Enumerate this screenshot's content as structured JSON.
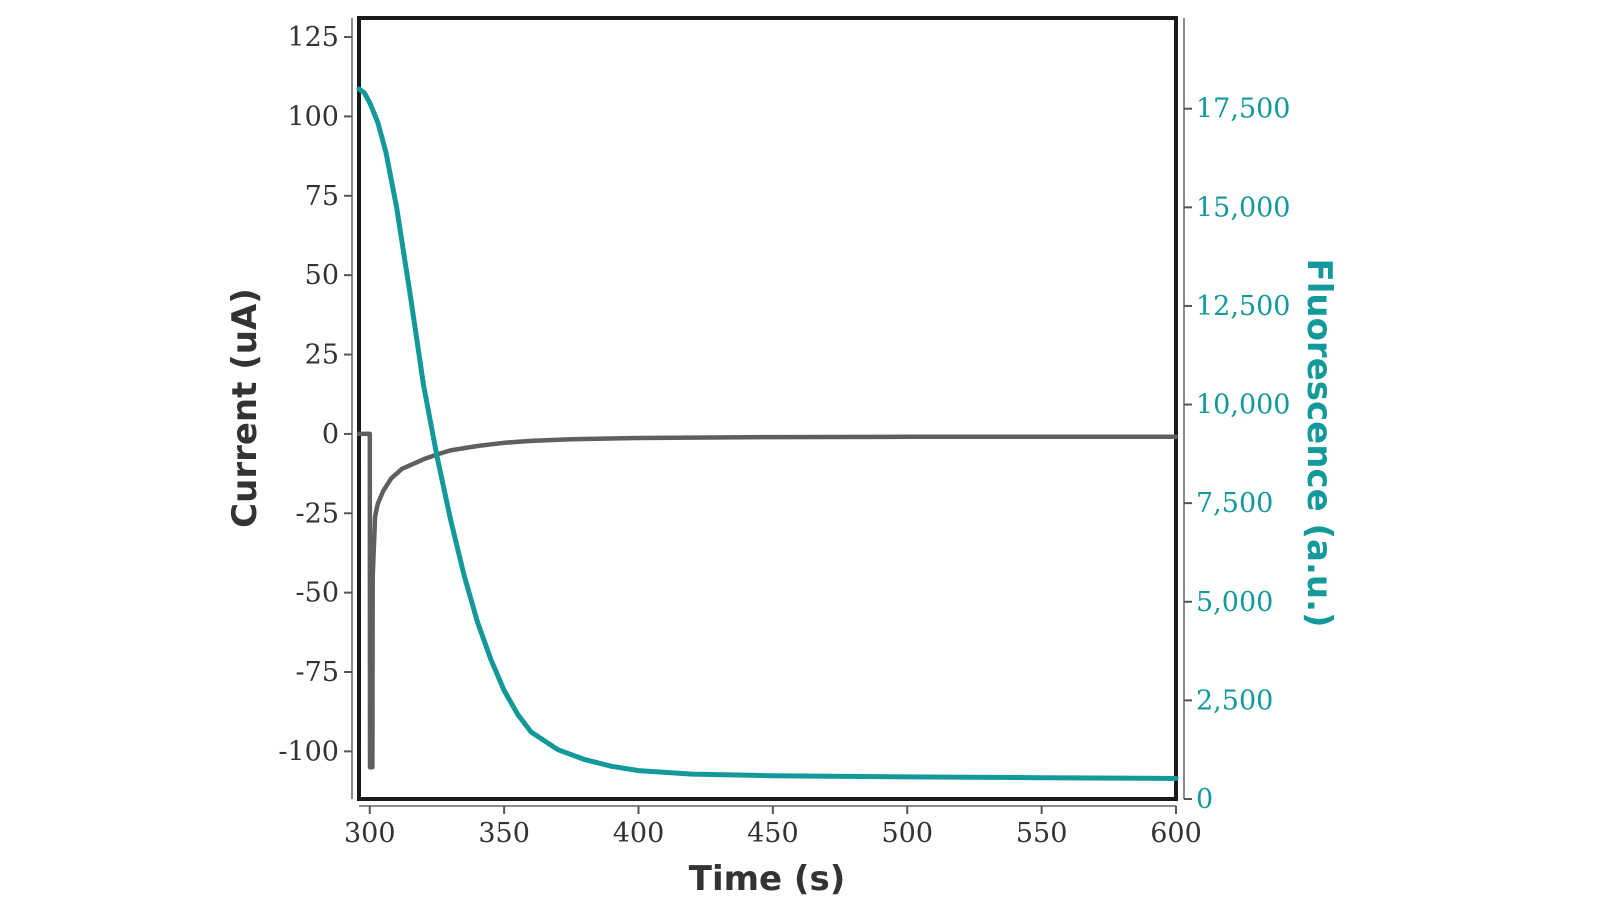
{
  "chart_data": {
    "type": "line",
    "xlabel": "Time (s)",
    "ylabel_left": "Current (uA)",
    "ylabel_right": "Fluorescence (a.u.)",
    "xlim": [
      296,
      600
    ],
    "ylim_left": [
      -115,
      131
    ],
    "ylim_right": [
      0,
      19800
    ],
    "x_ticks": [
      300,
      350,
      400,
      450,
      500,
      550,
      600
    ],
    "x_tick_labels": [
      "300",
      "350",
      "400",
      "450",
      "500",
      "550",
      "600"
    ],
    "y_left_ticks": [
      125,
      100,
      75,
      50,
      25,
      0,
      -25,
      -50,
      -75,
      -100
    ],
    "y_left_tick_labels": [
      "125",
      "100",
      "75",
      "50",
      "25",
      "0",
      "-25",
      "-50",
      "-75",
      "-100"
    ],
    "y_right_ticks": [
      17500,
      15000,
      12500,
      10000,
      7500,
      5000,
      2500,
      0
    ],
    "y_right_tick_labels": [
      "17,500",
      "15,000",
      "12,500",
      "10,000",
      "7,500",
      "5,000",
      "2,500",
      "0"
    ],
    "grid": false,
    "colors": {
      "current": "#5f5f5f",
      "fluorescence": "#13999a",
      "axis_left": "#333333",
      "axis_right": "#13999a",
      "frame": "#1a1a1a"
    },
    "series": [
      {
        "axis": "left",
        "x": [
          296,
          300,
          300.1,
          301,
          301.1,
          302,
          303,
          305,
          308,
          312,
          316,
          320,
          325,
          330,
          340,
          350,
          360,
          375,
          400,
          450,
          500,
          550,
          600
        ],
        "y": [
          0,
          0,
          -105,
          -105,
          -45,
          -26,
          -22,
          -18,
          -14,
          -11,
          -9.5,
          -8,
          -6.5,
          -5.2,
          -3.8,
          -2.8,
          -2.2,
          -1.7,
          -1.3,
          -1,
          -0.9,
          -0.9,
          -0.9
        ]
      },
      {
        "axis": "right",
        "x": [
          296,
          298,
          300,
          303,
          306,
          310,
          315,
          320,
          325,
          330,
          335,
          340,
          345,
          350,
          355,
          360,
          370,
          380,
          390,
          400,
          420,
          450,
          500,
          550,
          600
        ],
        "y": [
          18000,
          17900,
          17650,
          17150,
          16400,
          15000,
          12800,
          10500,
          8700,
          7100,
          5700,
          4500,
          3550,
          2750,
          2150,
          1700,
          1250,
          1000,
          830,
          720,
          630,
          590,
          560,
          540,
          520
        ]
      }
    ]
  }
}
